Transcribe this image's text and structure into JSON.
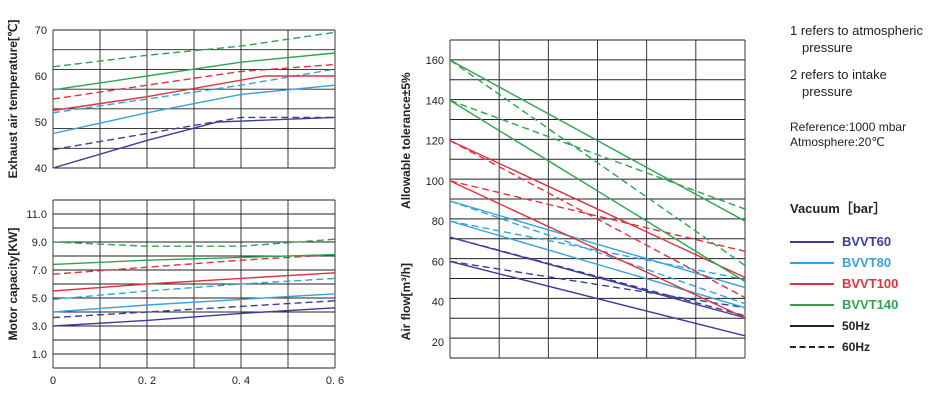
{
  "chart_data": [
    {
      "type": "line",
      "ylabel": "Exhaust air temperature[℃]",
      "xlim": [
        0,
        0.6
      ],
      "ylim": [
        40,
        70
      ],
      "yticks": [
        40,
        50,
        60,
        70
      ],
      "series": [
        {
          "color": "#3a3e9a",
          "style": "solid",
          "x": [
            0,
            0.2,
            0.35,
            0.6
          ],
          "y": [
            40,
            46,
            50,
            51
          ]
        },
        {
          "color": "#3a3e9a",
          "style": "dashed",
          "x": [
            0,
            0.2,
            0.4,
            0.6
          ],
          "y": [
            44,
            47.5,
            51,
            51
          ]
        },
        {
          "color": "#34a3dc",
          "style": "solid",
          "x": [
            0,
            0.2,
            0.4,
            0.6
          ],
          "y": [
            47.5,
            52,
            56,
            58
          ]
        },
        {
          "color": "#34a3dc",
          "style": "dashed",
          "x": [
            0,
            0.2,
            0.4,
            0.6
          ],
          "y": [
            52,
            55,
            58,
            61.5
          ]
        },
        {
          "color": "#e0313e",
          "style": "solid",
          "x": [
            0,
            0.2,
            0.45,
            0.6
          ],
          "y": [
            52.5,
            55.5,
            60,
            60
          ]
        },
        {
          "color": "#e0313e",
          "style": "dashed",
          "x": [
            0,
            0.2,
            0.4,
            0.6
          ],
          "y": [
            55,
            58,
            61,
            62.5
          ]
        },
        {
          "color": "#2ea44f",
          "style": "solid",
          "x": [
            0,
            0.2,
            0.4,
            0.6
          ],
          "y": [
            57,
            60,
            63,
            65
          ]
        },
        {
          "color": "#2ea44f",
          "style": "dashed",
          "x": [
            0,
            0.2,
            0.4,
            0.6
          ],
          "y": [
            62,
            64.5,
            66.5,
            69.5
          ]
        }
      ]
    },
    {
      "type": "line",
      "ylabel": "Motor capacity[KW]",
      "xlim": [
        0,
        0.6
      ],
      "ylim": [
        0,
        12
      ],
      "yticks": [
        1.0,
        3.0,
        5.0,
        7.0,
        9.0,
        11.0
      ],
      "xticks": [
        0,
        0.2,
        0.4,
        0.6
      ],
      "xticklabels": [
        "0",
        "0. 2",
        "0. 4",
        "0. 6"
      ],
      "series": [
        {
          "color": "#3a3e9a",
          "style": "solid",
          "x": [
            0,
            0.2,
            0.4,
            0.6
          ],
          "y": [
            3.0,
            3.4,
            3.9,
            4.3
          ]
        },
        {
          "color": "#3a3e9a",
          "style": "dashed",
          "x": [
            0,
            0.2,
            0.4,
            0.6
          ],
          "y": [
            3.6,
            4.0,
            4.4,
            4.8
          ]
        },
        {
          "color": "#34a3dc",
          "style": "solid",
          "x": [
            0,
            0.2,
            0.4,
            0.6
          ],
          "y": [
            4.0,
            4.5,
            4.9,
            5.3
          ]
        },
        {
          "color": "#34a3dc",
          "style": "dashed",
          "x": [
            0,
            0.2,
            0.4,
            0.6
          ],
          "y": [
            4.9,
            5.5,
            6.0,
            6.4
          ]
        },
        {
          "color": "#e0313e",
          "style": "solid",
          "x": [
            0,
            0.2,
            0.4,
            0.6
          ],
          "y": [
            5.5,
            6.0,
            6.4,
            6.8
          ]
        },
        {
          "color": "#e0313e",
          "style": "dashed",
          "x": [
            0,
            0.2,
            0.4,
            0.6
          ],
          "y": [
            6.7,
            7.2,
            7.7,
            8.1
          ]
        },
        {
          "color": "#2ea44f",
          "style": "solid",
          "x": [
            0,
            0.2,
            0.4,
            0.6
          ],
          "y": [
            7.4,
            7.7,
            7.9,
            8.1
          ]
        },
        {
          "color": "#2ea44f",
          "style": "dashed",
          "x": [
            0,
            0.2,
            0.4,
            0.6
          ],
          "y": [
            9.0,
            8.7,
            8.7,
            9.2
          ]
        }
      ]
    },
    {
      "type": "line",
      "ylabel": "Allowable tolerance±5%",
      "ylabel2": "Air flow[m³/h]",
      "xlim": [
        0,
        0.6
      ],
      "ylim": [
        12,
        170
      ],
      "yticks": [
        20,
        40,
        60,
        80,
        100,
        120,
        140,
        160
      ],
      "series": [
        {
          "color": "#3a3e9a",
          "style": "solid",
          "x": [
            0,
            0.6
          ],
          "y": [
            60,
            23
          ]
        },
        {
          "color": "#3a3e9a",
          "style": "dashed",
          "x": [
            0,
            0.6
          ],
          "y": [
            72,
            33
          ]
        },
        {
          "color": "#3a3e9a",
          "style": "solid",
          "x": [
            0,
            0.6
          ],
          "y": [
            72,
            32
          ]
        },
        {
          "color": "#3a3e9a",
          "style": "dashed",
          "x": [
            0,
            0.6
          ],
          "y": [
            60,
            37
          ]
        },
        {
          "color": "#34a3dc",
          "style": "solid",
          "x": [
            0,
            0.6
          ],
          "y": [
            80,
            37
          ]
        },
        {
          "color": "#34a3dc",
          "style": "dashed",
          "x": [
            0,
            0.6
          ],
          "y": [
            90,
            39
          ]
        },
        {
          "color": "#34a3dc",
          "style": "solid",
          "x": [
            0,
            0.6
          ],
          "y": [
            90,
            47
          ]
        },
        {
          "color": "#34a3dc",
          "style": "dashed",
          "x": [
            0,
            0.6
          ],
          "y": [
            80,
            51
          ]
        },
        {
          "color": "#e0313e",
          "style": "solid",
          "x": [
            0,
            0.6
          ],
          "y": [
            100,
            32
          ]
        },
        {
          "color": "#e0313e",
          "style": "dashed",
          "x": [
            0,
            0.6
          ],
          "y": [
            120,
            42
          ]
        },
        {
          "color": "#e0313e",
          "style": "solid",
          "x": [
            0,
            0.6
          ],
          "y": [
            120,
            52
          ]
        },
        {
          "color": "#e0313e",
          "style": "dashed",
          "x": [
            0,
            0.6
          ],
          "y": [
            100,
            65
          ]
        },
        {
          "color": "#2ea44f",
          "style": "solid",
          "x": [
            0,
            0.6
          ],
          "y": [
            140,
            50
          ]
        },
        {
          "color": "#2ea44f",
          "style": "dashed",
          "x": [
            0,
            0.6
          ],
          "y": [
            160,
            58
          ]
        },
        {
          "color": "#2ea44f",
          "style": "solid",
          "x": [
            0,
            0.6
          ],
          "y": [
            160,
            80
          ]
        },
        {
          "color": "#2ea44f",
          "style": "dashed",
          "x": [
            0,
            0.6
          ],
          "y": [
            140,
            86
          ]
        }
      ]
    }
  ],
  "notes": {
    "line1a": "1 refers to atmospheric",
    "line1b": "pressure",
    "line2a": "2 refers to intake",
    "line2b": "pressure",
    "reference": "Reference:1000 mbar",
    "atmosphere": "Atmosphere:20℃"
  },
  "legend": {
    "title": "Vacuum［bar］",
    "items": [
      {
        "label": "BVVT60",
        "color": "#3a3e9a"
      },
      {
        "label": "BVVT80",
        "color": "#34a3dc"
      },
      {
        "label": "BVVT100",
        "color": "#e0313e"
      },
      {
        "label": "BVVT140",
        "color": "#2ea44f"
      }
    ],
    "hz50": "50Hz",
    "hz60": "60Hz"
  }
}
